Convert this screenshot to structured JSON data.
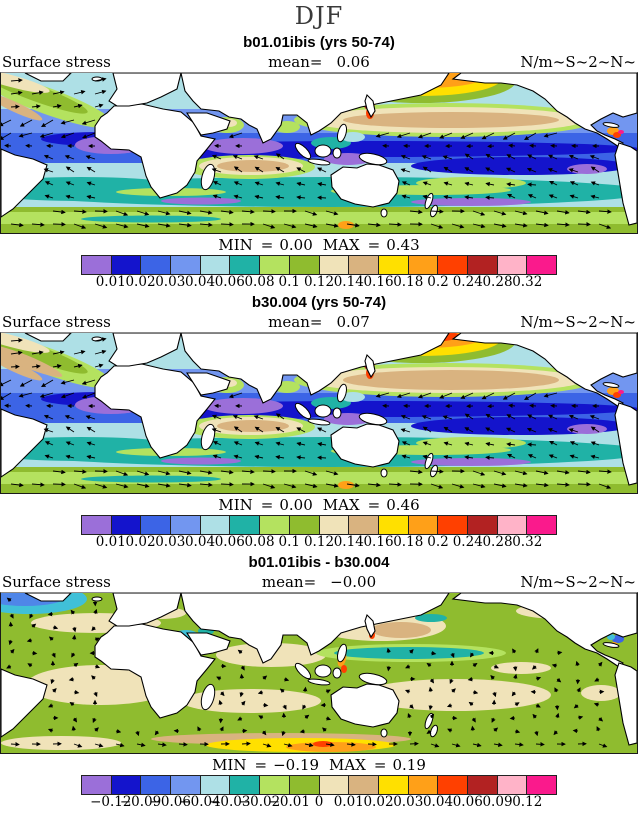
{
  "page_title": "DJF",
  "shared": {
    "field_label": "Surface stress",
    "mean_label": "mean=",
    "units": "N/m~S~2~N~",
    "min_label": "MIN",
    "max_label": "MAX",
    "equals": "="
  },
  "palette": [
    "#9B6FD9",
    "#1414CC",
    "#3C64E6",
    "#7296F0",
    "#AEE0E6",
    "#20B2A6",
    "#B4E25F",
    "#8FBC2F",
    "#F0E3B9",
    "#D9B380",
    "#FFE000",
    "#FFA018",
    "#FF4000",
    "#B22222",
    "#FFB3C8",
    "#FA1A8C"
  ],
  "chart_data": [
    {
      "type": "heatmap",
      "subtype": "vector-contour-map",
      "season": "DJF",
      "title": "b01.01ibis (yrs 50-74)",
      "field": "Surface stress",
      "units": "N/m~S~2~N~",
      "mean": "0.06",
      "min": "0.00",
      "max": "0.43",
      "contour_levels": [
        "0.01",
        "0.02",
        "0.03",
        "0.04",
        "0.06",
        "0.08",
        "0.1",
        "0.12",
        "0.14",
        "0.16",
        "0.18",
        "0.2",
        "0.24",
        "0.28",
        "0.32"
      ],
      "legend_position": "bottom",
      "map_theme": "stress"
    },
    {
      "type": "heatmap",
      "subtype": "vector-contour-map",
      "season": "DJF",
      "title": "b30.004 (yrs 50-74)",
      "field": "Surface stress",
      "units": "N/m~S~2~N~",
      "mean": "0.07",
      "min": "0.00",
      "max": "0.46",
      "contour_levels": [
        "0.01",
        "0.02",
        "0.03",
        "0.04",
        "0.06",
        "0.08",
        "0.1",
        "0.12",
        "0.14",
        "0.16",
        "0.18",
        "0.2",
        "0.24",
        "0.28",
        "0.32"
      ],
      "legend_position": "bottom",
      "map_theme": "stress-strong"
    },
    {
      "type": "heatmap",
      "subtype": "vector-contour-map-difference",
      "season": "DJF",
      "title": "b01.01ibis - b30.004",
      "field": "Surface stress",
      "units": "N/m~S~2~N~",
      "mean": "−0.00",
      "min": "−0.19",
      "max": "0.19",
      "contour_levels": [
        "−0.12",
        "−0.09",
        "−0.06",
        "−0.04",
        "−0.03",
        "−0.02",
        "−0.01",
        "0",
        "0.01",
        "0.02",
        "0.03",
        "0.04",
        "0.06",
        "0.09",
        "0.12"
      ],
      "legend_position": "bottom",
      "map_theme": "diff"
    }
  ]
}
